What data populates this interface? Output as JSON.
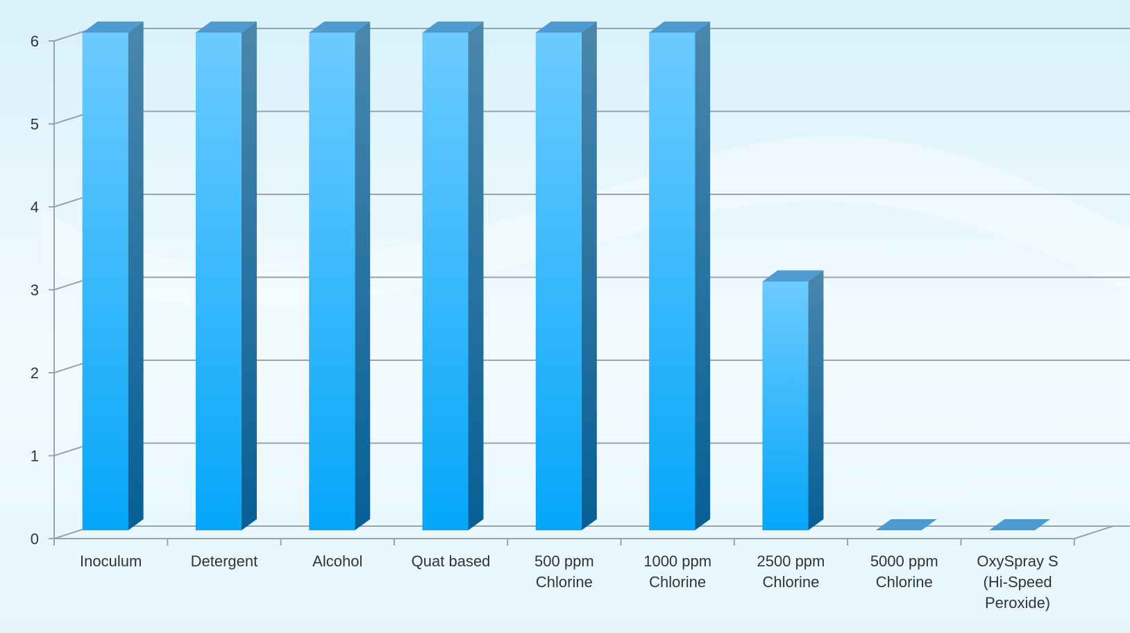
{
  "chart_data": {
    "type": "bar",
    "title": "",
    "xlabel": "",
    "ylabel": "",
    "ylim": [
      0,
      6
    ],
    "yticks": [
      "0",
      "1",
      "2",
      "3",
      "4",
      "5",
      "6"
    ],
    "grid": true,
    "style": "3d-column",
    "categories": [
      [
        "Inoculum"
      ],
      [
        "Detergent"
      ],
      [
        "Alcohol"
      ],
      [
        "Quat based"
      ],
      [
        "500 ppm",
        "Chlorine"
      ],
      [
        "1000 ppm",
        "Chlorine"
      ],
      [
        "2500 ppm",
        "Chlorine"
      ],
      [
        "5000 ppm",
        "Chlorine"
      ],
      [
        "OxySpray S",
        "(Hi-Speed",
        "Peroxide)"
      ]
    ],
    "values": [
      6,
      6,
      6,
      6,
      6,
      6,
      3,
      0,
      0
    ]
  },
  "colors": {
    "bar_front_top": "#6ccbff",
    "bar_front_bottom": "#05a6f9",
    "bar_side_top": "#4a87ad",
    "bar_side_bottom": "#065f95",
    "bar_top": "#4d9bd0",
    "grid": "#9aa3a8",
    "axis": "#9aa3a8"
  }
}
